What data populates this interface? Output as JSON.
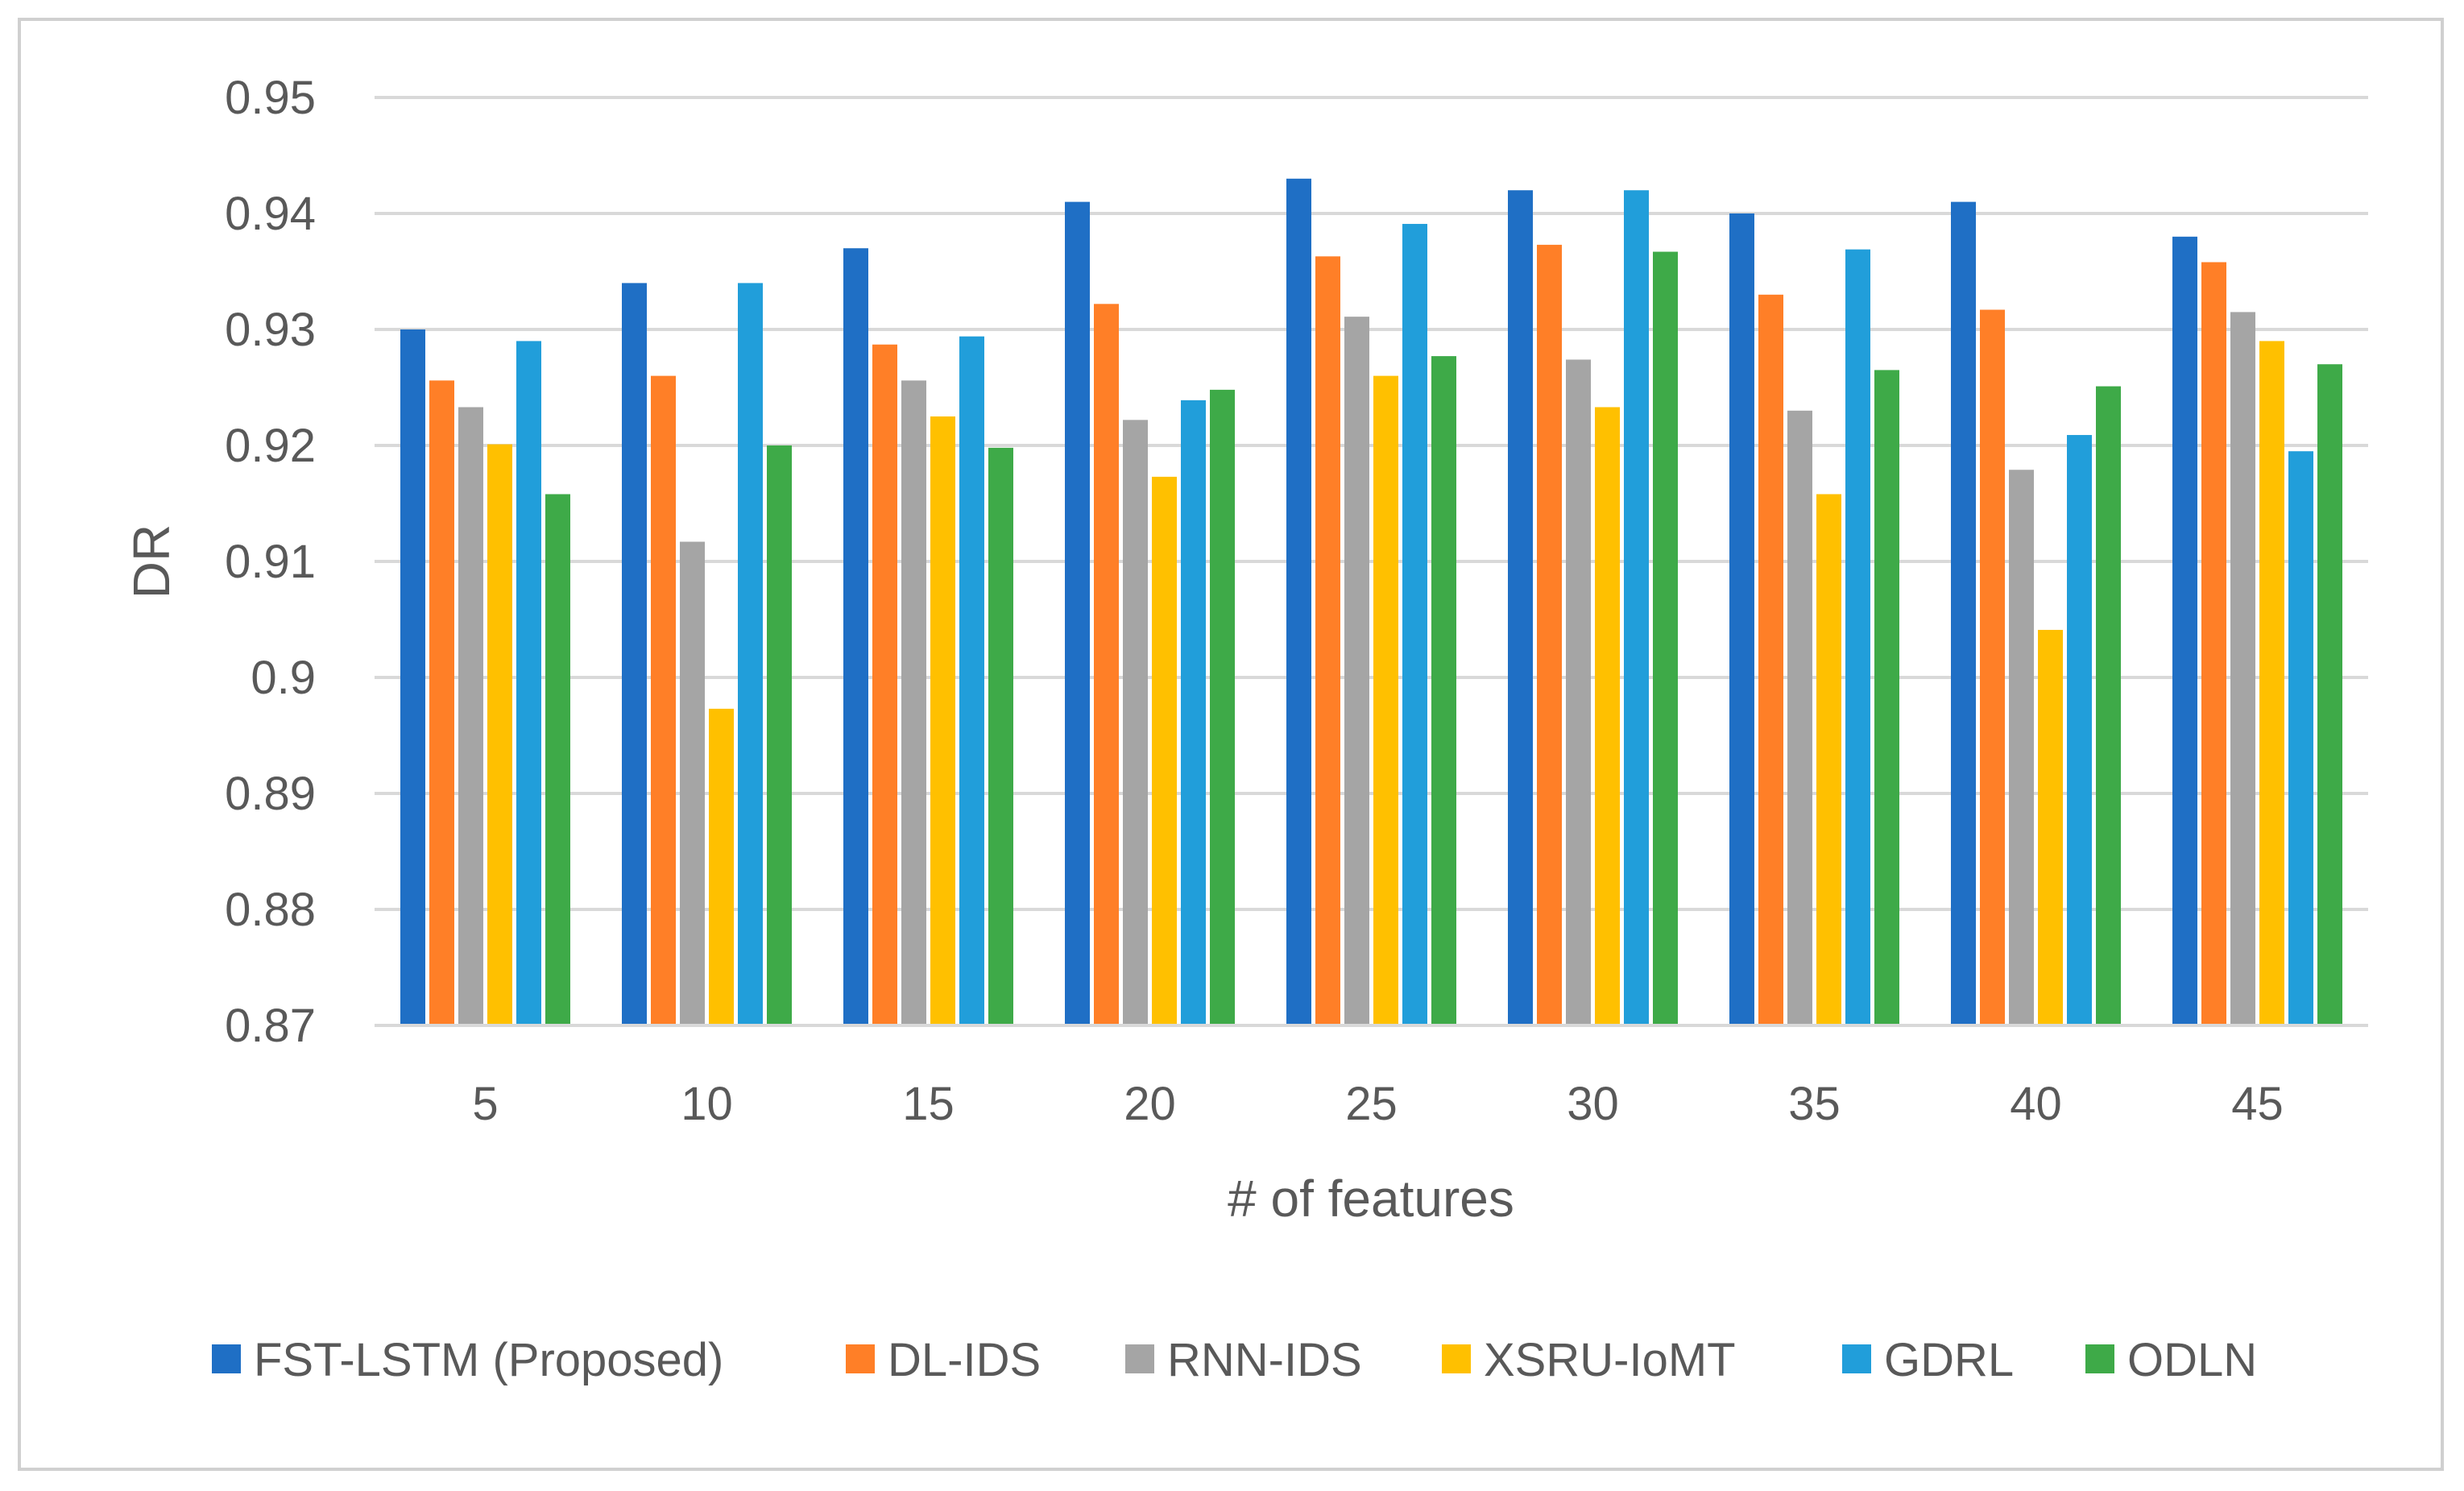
{
  "chart_data": {
    "type": "bar",
    "title": "",
    "xlabel": "# of features",
    "ylabel": "DR",
    "ylim": [
      0.87,
      0.95
    ],
    "yticks": [
      "0.87",
      "0.88",
      "0.89",
      "0.9",
      "0.91",
      "0.92",
      "0.93",
      "0.94",
      "0.95"
    ],
    "grid": true,
    "legend_position": "bottom",
    "categories": [
      "5",
      "10",
      "15",
      "20",
      "25",
      "30",
      "35",
      "40",
      "45"
    ],
    "series": [
      {
        "name": "FST-LSTM (Proposed)",
        "color": "#1F6FC5",
        "values": [
          0.93,
          0.934,
          0.937,
          0.941,
          0.943,
          0.942,
          0.94,
          0.941,
          0.938
        ]
      },
      {
        "name": "DL-IDS",
        "color": "#FF7F27",
        "values": [
          0.9256,
          0.926,
          0.9287,
          0.9322,
          0.9363,
          0.9373,
          0.933,
          0.9317,
          0.9358
        ]
      },
      {
        "name": "RNN-IDS",
        "color": "#A5A5A5",
        "values": [
          0.9233,
          0.9117,
          0.9256,
          0.9222,
          0.9311,
          0.9274,
          0.923,
          0.9179,
          0.9315
        ]
      },
      {
        "name": "XSRU-IoMT",
        "color": "#FFC000",
        "values": [
          0.9201,
          0.8973,
          0.9225,
          0.9173,
          0.926,
          0.9233,
          0.9158,
          0.9041,
          0.929
        ]
      },
      {
        "name": "GDRL",
        "color": "#219EDA",
        "values": [
          0.929,
          0.934,
          0.9294,
          0.9239,
          0.9391,
          0.942,
          0.9369,
          0.9209,
          0.9195
        ]
      },
      {
        "name": "ODLN",
        "color": "#3EAA48",
        "values": [
          0.9158,
          0.92,
          0.9198,
          0.9248,
          0.9277,
          0.9367,
          0.9265,
          0.9251,
          0.927
        ]
      }
    ]
  }
}
